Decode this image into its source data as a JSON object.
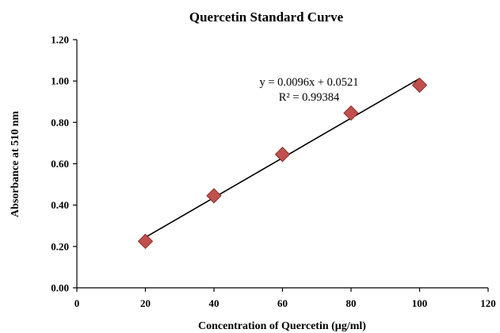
{
  "chart_data": {
    "type": "scatter",
    "title": "Quercetin Standard Curve",
    "xlabel": "Concentration of Quercetin (µg/ml)",
    "ylabel": "Absorbance at 510 nm",
    "xlim": [
      0,
      120
    ],
    "ylim": [
      0,
      1.2
    ],
    "x_ticks": [
      "0",
      "20",
      "40",
      "60",
      "80",
      "100",
      "120"
    ],
    "y_ticks": [
      "0.00",
      "0.20",
      "0.40",
      "0.60",
      "0.80",
      "1.00",
      "1.20"
    ],
    "x": [
      20,
      40,
      60,
      80,
      100
    ],
    "y": [
      0.225,
      0.445,
      0.645,
      0.845,
      0.98
    ],
    "grid": false,
    "legend": "none",
    "marker": "diamond",
    "marker_color": "#c0504d",
    "trendline": {
      "type": "linear",
      "slope": 0.0096,
      "intercept": 0.0521,
      "x_range": [
        20,
        100
      ],
      "equation": "y = 0.0096x + 0.0521",
      "r_squared": "R² = 0.99384"
    }
  }
}
